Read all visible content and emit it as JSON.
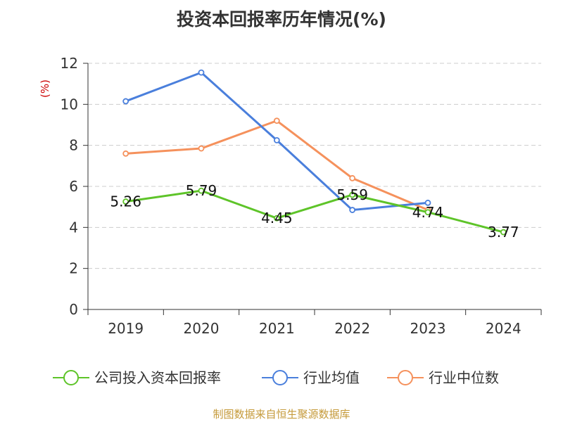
{
  "chart_data": {
    "type": "line",
    "title": "投资本回报率历年情况(%)",
    "ylabel": "(%)",
    "categories": [
      "2019",
      "2020",
      "2021",
      "2022",
      "2023",
      "2024"
    ],
    "ylim": [
      0,
      12
    ],
    "yticks": [
      "0",
      "2",
      "4",
      "6",
      "8",
      "10",
      "12"
    ],
    "grid": true,
    "legend_position": "bottom",
    "series": [
      {
        "name": "公司投入资本回报率",
        "color": "#5ec429",
        "values": [
          5.26,
          5.79,
          4.45,
          5.59,
          4.74,
          3.77
        ],
        "labels": [
          "5.26",
          "5.79",
          "4.45",
          "5.59",
          "4.74",
          "3.77"
        ]
      },
      {
        "name": "行业均值",
        "color": "#4a7fdc",
        "values": [
          10.15,
          11.55,
          8.25,
          4.85,
          5.2,
          null
        ]
      },
      {
        "name": "行业中位数",
        "color": "#f5915c",
        "values": [
          7.6,
          7.85,
          9.2,
          6.4,
          4.85,
          null
        ]
      }
    ]
  },
  "source": "制图数据来自恒生聚源数据库"
}
